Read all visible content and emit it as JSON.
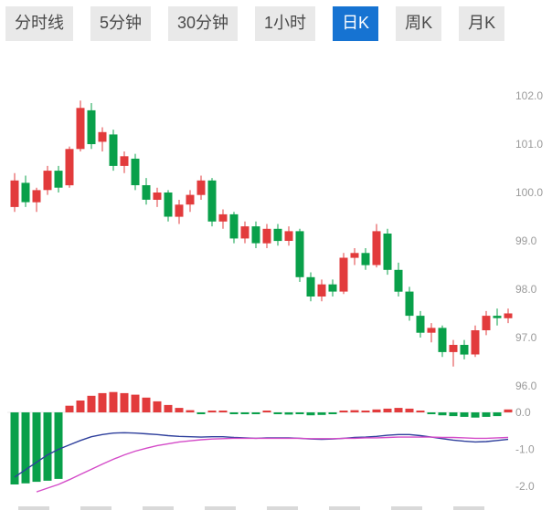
{
  "tabs": {
    "items": [
      {
        "label": "分时线",
        "active": false
      },
      {
        "label": "5分钟",
        "active": false
      },
      {
        "label": "30分钟",
        "active": false
      },
      {
        "label": "1小时",
        "active": false
      },
      {
        "label": "日K",
        "active": true
      },
      {
        "label": "周K",
        "active": false
      },
      {
        "label": "月K",
        "active": false
      }
    ]
  },
  "colors": {
    "up": "#e23b3c",
    "down": "#09a04a",
    "dif_line": "#2e3f9c",
    "dea_line": "#d44bc8",
    "axis_text": "#9b9b9b",
    "tab_bg": "#e9e9e9",
    "tab_text": "#4a4a4a",
    "tab_active_bg": "#1673d2",
    "tab_active_text": "#ffffff"
  },
  "chart_data": {
    "type": "candlestick+macd",
    "title": "",
    "legend_position": "none",
    "grid": false,
    "price_axis": {
      "ticks": [
        102.0,
        101.0,
        100.0,
        99.0,
        98.0,
        97.0,
        96.0
      ],
      "range": [
        95.6,
        102.5
      ]
    },
    "macd_axis": {
      "ticks": [
        0.0,
        -1.0,
        -2.0
      ],
      "range": [
        0.7,
        -2.3
      ]
    },
    "candles_format": [
      "open",
      "high",
      "low",
      "close"
    ],
    "candles": [
      [
        99.7,
        100.4,
        99.6,
        100.25
      ],
      [
        100.2,
        100.35,
        99.7,
        99.8
      ],
      [
        99.8,
        100.1,
        99.6,
        100.05
      ],
      [
        100.05,
        100.55,
        99.95,
        100.45
      ],
      [
        100.45,
        100.55,
        100.0,
        100.1
      ],
      [
        100.15,
        100.95,
        100.1,
        100.9
      ],
      [
        100.9,
        101.9,
        100.85,
        101.75
      ],
      [
        101.7,
        101.85,
        100.9,
        101.0
      ],
      [
        101.05,
        101.35,
        100.85,
        101.25
      ],
      [
        101.2,
        101.3,
        100.45,
        100.55
      ],
      [
        100.55,
        100.85,
        100.4,
        100.75
      ],
      [
        100.7,
        100.8,
        100.05,
        100.15
      ],
      [
        100.15,
        100.3,
        99.75,
        99.85
      ],
      [
        99.85,
        100.1,
        99.7,
        100.0
      ],
      [
        100.0,
        100.05,
        99.4,
        99.5
      ],
      [
        99.5,
        99.85,
        99.35,
        99.75
      ],
      [
        99.75,
        100.05,
        99.6,
        99.95
      ],
      [
        99.95,
        100.35,
        99.85,
        100.25
      ],
      [
        100.25,
        100.3,
        99.3,
        99.4
      ],
      [
        99.4,
        99.65,
        99.25,
        99.55
      ],
      [
        99.55,
        99.6,
        98.95,
        99.05
      ],
      [
        99.05,
        99.4,
        98.95,
        99.3
      ],
      [
        99.3,
        99.4,
        98.85,
        98.95
      ],
      [
        98.95,
        99.35,
        98.85,
        99.25
      ],
      [
        99.25,
        99.35,
        98.9,
        99.0
      ],
      [
        99.0,
        99.3,
        98.9,
        99.2
      ],
      [
        99.2,
        99.25,
        98.15,
        98.25
      ],
      [
        98.25,
        98.35,
        97.75,
        97.85
      ],
      [
        97.85,
        98.2,
        97.75,
        98.1
      ],
      [
        98.1,
        98.2,
        97.85,
        97.95
      ],
      [
        97.95,
        98.75,
        97.9,
        98.65
      ],
      [
        98.65,
        98.85,
        98.5,
        98.75
      ],
      [
        98.75,
        98.85,
        98.4,
        98.5
      ],
      [
        98.5,
        99.35,
        98.45,
        99.2
      ],
      [
        99.15,
        99.25,
        98.3,
        98.4
      ],
      [
        98.4,
        98.55,
        97.85,
        97.95
      ],
      [
        97.95,
        98.05,
        97.35,
        97.45
      ],
      [
        97.45,
        97.55,
        97.0,
        97.1
      ],
      [
        97.1,
        97.3,
        96.9,
        97.2
      ],
      [
        97.2,
        97.25,
        96.6,
        96.7
      ],
      [
        96.7,
        96.95,
        96.4,
        96.85
      ],
      [
        96.85,
        96.95,
        96.55,
        96.65
      ],
      [
        96.65,
        97.25,
        96.6,
        97.15
      ],
      [
        97.15,
        97.55,
        97.05,
        97.45
      ],
      [
        97.45,
        97.6,
        97.25,
        97.4
      ],
      [
        97.4,
        97.6,
        97.3,
        97.5
      ]
    ],
    "macd": {
      "histogram": [
        -1.95,
        -1.92,
        -1.88,
        -1.85,
        -1.8,
        0.18,
        0.32,
        0.45,
        0.52,
        0.55,
        0.52,
        0.48,
        0.4,
        0.3,
        0.2,
        0.12,
        0.06,
        -0.03,
        0.04,
        0.05,
        -0.04,
        -0.05,
        -0.04,
        0.03,
        -0.05,
        -0.06,
        -0.05,
        -0.08,
        -0.07,
        -0.05,
        0.04,
        0.06,
        0.05,
        0.08,
        0.1,
        0.12,
        0.1,
        0.05,
        -0.05,
        -0.08,
        -0.1,
        -0.12,
        -0.14,
        -0.12,
        -0.1,
        0.08
      ],
      "dif": [
        -1.75,
        -1.55,
        -1.35,
        -1.15,
        -1.0,
        -0.88,
        -0.76,
        -0.66,
        -0.6,
        -0.56,
        -0.55,
        -0.56,
        -0.58,
        -0.6,
        -0.63,
        -0.65,
        -0.66,
        -0.67,
        -0.66,
        -0.66,
        -0.68,
        -0.69,
        -0.7,
        -0.69,
        -0.69,
        -0.69,
        -0.7,
        -0.72,
        -0.73,
        -0.72,
        -0.7,
        -0.68,
        -0.67,
        -0.65,
        -0.62,
        -0.6,
        -0.6,
        -0.63,
        -0.67,
        -0.71,
        -0.75,
        -0.78,
        -0.8,
        -0.79,
        -0.76,
        -0.73
      ],
      "dea": [
        null,
        null,
        -2.15,
        -2.05,
        -1.95,
        -1.82,
        -1.68,
        -1.54,
        -1.4,
        -1.27,
        -1.15,
        -1.05,
        -0.97,
        -0.9,
        -0.85,
        -0.8,
        -0.77,
        -0.74,
        -0.72,
        -0.71,
        -0.7,
        -0.7,
        -0.7,
        -0.7,
        -0.7,
        -0.7,
        -0.7,
        -0.71,
        -0.71,
        -0.71,
        -0.7,
        -0.7,
        -0.69,
        -0.69,
        -0.68,
        -0.67,
        -0.67,
        -0.67,
        -0.67,
        -0.68,
        -0.68,
        -0.69,
        -0.7,
        -0.7,
        -0.69,
        -0.68
      ]
    }
  }
}
